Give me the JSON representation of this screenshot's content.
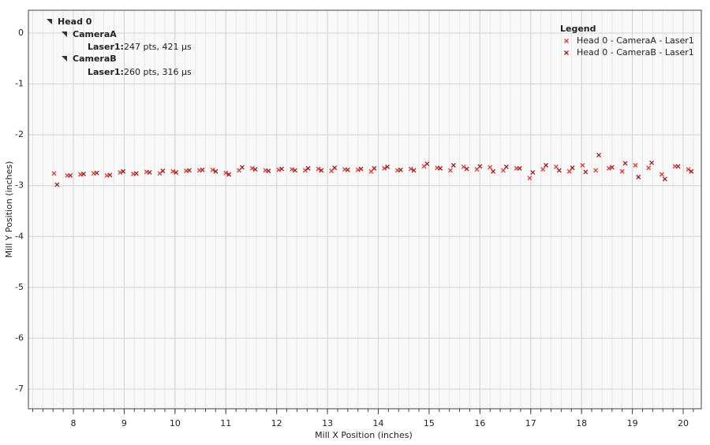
{
  "chart_data": {
    "type": "scatter",
    "xlabel": "Mill X Position (inches)",
    "ylabel": "Mill Y Position (inches)",
    "xlim": [
      7.115,
      20.357
    ],
    "ylim": [
      -7.387,
      0.449
    ],
    "xticks": [
      8,
      9,
      10,
      11,
      12,
      13,
      14,
      15,
      16,
      17,
      18,
      19,
      20
    ],
    "yticks": [
      0,
      -1,
      -2,
      -3,
      -4,
      -5,
      -6,
      -7
    ],
    "grid": true,
    "minor_divisions": 5,
    "legend_title": "Legend",
    "legend_position": "upper right",
    "annotations": {
      "root": "Head 0",
      "groups": [
        {
          "name": "CameraA",
          "items": [
            {
              "label": "Laser1:",
              "text": "247 pts,  421 µs"
            }
          ]
        },
        {
          "name": "CameraB",
          "items": [
            {
              "label": "Laser1:",
              "text": "260 pts,  316 µs"
            }
          ]
        }
      ]
    },
    "series": [
      {
        "name": "Head 0 - CameraA - Laser1",
        "color": "#e8352f",
        "x": [
          7.62,
          7.88,
          8.14,
          8.4,
          8.66,
          8.92,
          9.18,
          9.44,
          9.7,
          9.96,
          10.22,
          10.48,
          10.74,
          11.0,
          11.26,
          11.52,
          11.78,
          12.04,
          12.3,
          12.56,
          12.82,
          13.08,
          13.34,
          13.6,
          13.86,
          14.12,
          14.38,
          14.64,
          14.9,
          15.16,
          15.42,
          15.68,
          15.94,
          16.2,
          16.46,
          16.72,
          16.98,
          17.24,
          17.5,
          17.76,
          18.02,
          18.28,
          18.54,
          18.8,
          19.06,
          19.32,
          19.58,
          19.84,
          20.1
        ],
        "values": [
          -2.76,
          -2.8,
          -2.78,
          -2.76,
          -2.8,
          -2.74,
          -2.77,
          -2.73,
          -2.76,
          -2.72,
          -2.71,
          -2.7,
          -2.69,
          -2.75,
          -2.7,
          -2.66,
          -2.7,
          -2.69,
          -2.68,
          -2.7,
          -2.67,
          -2.71,
          -2.68,
          -2.69,
          -2.72,
          -2.66,
          -2.7,
          -2.67,
          -2.62,
          -2.65,
          -2.7,
          -2.63,
          -2.68,
          -2.64,
          -2.7,
          -2.66,
          -2.85,
          -2.68,
          -2.63,
          -2.72,
          -2.6,
          -2.7,
          -2.66,
          -2.72,
          -2.6,
          -2.65,
          -2.78,
          -2.62,
          -2.68
        ]
      },
      {
        "name": "Head 0 - CameraB - Laser1",
        "color": "#9e1b1b",
        "x": [
          7.68,
          7.94,
          8.2,
          8.46,
          8.72,
          8.98,
          9.24,
          9.5,
          9.76,
          10.02,
          10.28,
          10.54,
          10.8,
          11.06,
          11.32,
          11.58,
          11.84,
          12.1,
          12.36,
          12.62,
          12.88,
          13.14,
          13.4,
          13.66,
          13.92,
          14.18,
          14.44,
          14.7,
          14.96,
          15.22,
          15.48,
          15.74,
          16.0,
          16.26,
          16.52,
          16.78,
          17.04,
          17.3,
          17.56,
          17.82,
          18.08,
          18.34,
          18.6,
          18.86,
          19.12,
          19.38,
          19.64,
          19.9,
          20.16
        ],
        "values": [
          -2.98,
          -2.8,
          -2.77,
          -2.75,
          -2.79,
          -2.72,
          -2.76,
          -2.74,
          -2.71,
          -2.74,
          -2.7,
          -2.69,
          -2.72,
          -2.78,
          -2.64,
          -2.68,
          -2.71,
          -2.67,
          -2.7,
          -2.66,
          -2.7,
          -2.65,
          -2.69,
          -2.67,
          -2.66,
          -2.63,
          -2.69,
          -2.7,
          -2.57,
          -2.66,
          -2.6,
          -2.67,
          -2.62,
          -2.72,
          -2.63,
          -2.66,
          -2.74,
          -2.6,
          -2.7,
          -2.65,
          -2.73,
          -2.4,
          -2.64,
          -2.56,
          -2.83,
          -2.55,
          -2.87,
          -2.62,
          -2.72
        ]
      }
    ]
  }
}
